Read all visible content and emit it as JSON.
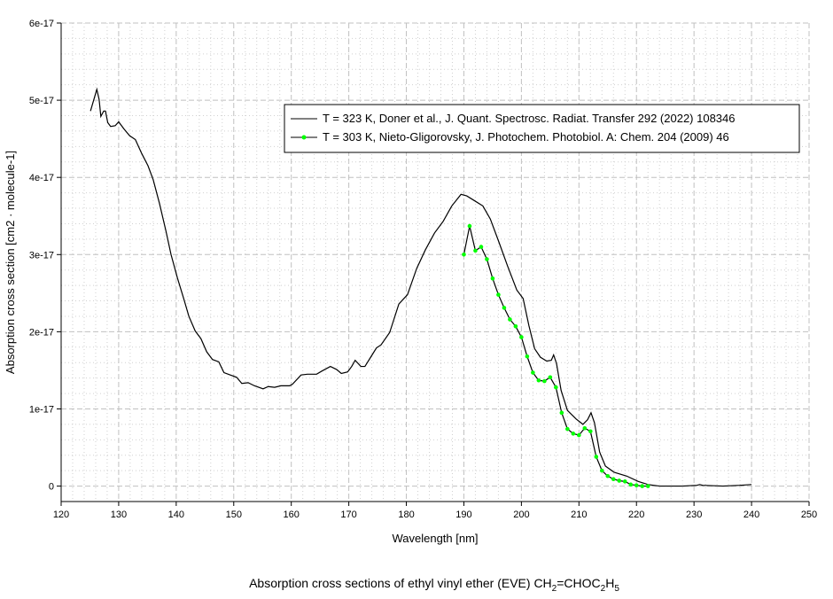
{
  "chart_data": {
    "type": "line",
    "title": {
      "main": "Absorption cross sections of ethyl vinyl ether (EVE) CH",
      "sub1": "2",
      "mid": "=CHOC",
      "sub2": "2",
      "end": "H",
      "sub3": "5"
    },
    "xlabel": "Wavelength [nm]",
    "ylabel": "Absorption cross section [cm2 · molecule-1]",
    "xlim": [
      120,
      250
    ],
    "ylim": [
      -2e-18,
      6e-17
    ],
    "xticks": [
      120,
      130,
      140,
      150,
      160,
      170,
      180,
      190,
      200,
      210,
      220,
      230,
      240,
      250
    ],
    "yticks": [
      0,
      1e-17,
      2e-17,
      3e-17,
      4e-17,
      5e-17,
      6e-17
    ],
    "ytick_labels": [
      "0",
      "1e-17",
      "2e-17",
      "3e-17",
      "4e-17",
      "5e-17",
      "6e-17"
    ],
    "grid": true,
    "legend_position": "top-right",
    "series": [
      {
        "name": "T = 323 K, Doner et al., J. Quant. Spectrosc. Radiat. Transfer 292 (2022) 108346",
        "color": "#000000",
        "marker": false,
        "x": [
          125.1,
          126.2,
          126.6,
          126.9,
          127.4,
          127.7,
          128.1,
          128.6,
          129.4,
          130.0,
          130.9,
          131.9,
          132.9,
          134.0,
          135.1,
          136.0,
          137.1,
          138.2,
          139.1,
          140.2,
          141.3,
          142.2,
          143.3,
          144.3,
          145.3,
          146.3,
          147.4,
          148.3,
          149.4,
          150.5,
          151.4,
          152.5,
          153.6,
          155.1,
          156.0,
          157.1,
          158.2,
          159.7,
          160.2,
          161.7,
          162.8,
          164.4,
          165.3,
          166.8,
          167.9,
          168.7,
          169.8,
          170.5,
          171.1,
          172.1,
          172.8,
          173.8,
          174.8,
          175.6,
          177.1,
          178.7,
          180.2,
          181.8,
          183.3,
          184.9,
          186.4,
          187.9,
          189.5,
          190.5,
          191.8,
          193.3,
          194.6,
          196.1,
          197.6,
          199.2,
          200.3,
          201.3,
          202.3,
          203.3,
          204.4,
          205.2,
          205.6,
          206.1,
          206.9,
          208.0,
          209.5,
          210.7,
          211.5,
          212.1,
          212.7,
          213.6,
          214.6,
          216.1,
          218.3,
          220.3,
          222.0,
          224.0,
          228.0,
          230.5,
          231.0,
          231.5,
          235.0,
          238.0,
          240.0
        ],
        "y": [
          4.86,
          5.14,
          5.01,
          4.79,
          4.86,
          4.86,
          4.71,
          4.66,
          4.67,
          4.72,
          4.63,
          4.54,
          4.49,
          4.31,
          4.15,
          3.97,
          3.66,
          3.31,
          3.0,
          2.7,
          2.43,
          2.2,
          2.01,
          1.91,
          1.74,
          1.64,
          1.61,
          1.47,
          1.44,
          1.41,
          1.33,
          1.34,
          1.3,
          1.26,
          1.29,
          1.28,
          1.3,
          1.3,
          1.32,
          1.44,
          1.45,
          1.45,
          1.49,
          1.55,
          1.51,
          1.46,
          1.48,
          1.55,
          1.63,
          1.55,
          1.55,
          1.67,
          1.79,
          1.83,
          1.99,
          2.36,
          2.48,
          2.82,
          3.06,
          3.28,
          3.43,
          3.63,
          3.78,
          3.76,
          3.7,
          3.63,
          3.46,
          3.16,
          2.85,
          2.54,
          2.43,
          2.08,
          1.78,
          1.67,
          1.62,
          1.63,
          1.7,
          1.59,
          1.24,
          0.98,
          0.87,
          0.8,
          0.86,
          0.95,
          0.82,
          0.44,
          0.26,
          0.18,
          0.13,
          0.06,
          0.02,
          0.0,
          0.0,
          0.01,
          0.02,
          0.01,
          0.0,
          0.01,
          0.02
        ],
        "y_scale": 1e-17
      },
      {
        "name": "T = 303 K, Nieto-Gligorovsky, J. Photochem. Photobiol. A: Chem. 204 (2009) 46",
        "color": "#000000",
        "marker_color": "#00ff00",
        "marker": true,
        "x": [
          190,
          191,
          192,
          193,
          194,
          195,
          196,
          197,
          198,
          199,
          200,
          201,
          202,
          203,
          204,
          205,
          206,
          207,
          208,
          209,
          210,
          211,
          212,
          213,
          214,
          215,
          216,
          217,
          218,
          219,
          220,
          221,
          222
        ],
        "y": [
          3.0,
          3.37,
          3.05,
          3.1,
          2.94,
          2.69,
          2.48,
          2.31,
          2.16,
          2.07,
          1.93,
          1.68,
          1.47,
          1.37,
          1.36,
          1.41,
          1.28,
          0.95,
          0.74,
          0.68,
          0.66,
          0.75,
          0.71,
          0.38,
          0.2,
          0.13,
          0.09,
          0.07,
          0.06,
          0.02,
          0.01,
          0.0,
          0.0
        ],
        "y_scale": 1e-17
      }
    ]
  }
}
